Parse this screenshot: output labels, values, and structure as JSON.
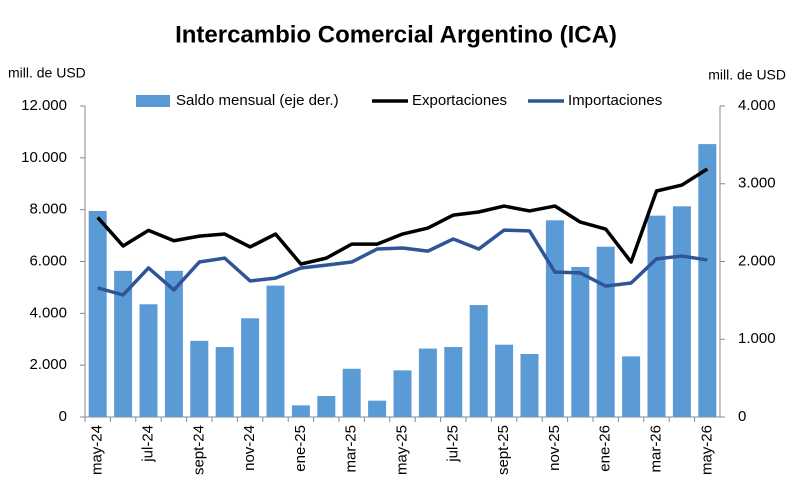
{
  "chart_data": {
    "type": "bar_line",
    "title": "Intercambio Comercial Argentino (ICA)",
    "y_label": "mill. de USD",
    "y2_label": "mill. de USD",
    "categories": [
      "may-24",
      null,
      "jul-24",
      null,
      "sept-24",
      null,
      "nov-24",
      null,
      "ene-25",
      null,
      "mar-25",
      null,
      "may-25",
      null,
      "jul-25",
      null,
      "sept-25",
      null,
      "nov-25",
      null,
      "ene-26",
      null,
      "mar-26",
      null,
      "may-26"
    ],
    "series": [
      {
        "name": "Saldo mensual (eje der.)",
        "type": "bar",
        "axis": "y2",
        "color": "#5b9bd5",
        "values": [
          2650,
          1880,
          1450,
          1880,
          980,
          900,
          1270,
          1690,
          150,
          270,
          620,
          210,
          600,
          880,
          900,
          1440,
          930,
          810,
          2530,
          1930,
          2190,
          780,
          2590,
          2710,
          3510
        ]
      },
      {
        "name": "Exportaciones",
        "type": "line",
        "color": "#000000",
        "values": [
          7700,
          6600,
          7200,
          6800,
          6980,
          7060,
          6560,
          7060,
          5900,
          6130,
          6670,
          6670,
          7060,
          7290,
          7790,
          7910,
          8140,
          7950,
          8140,
          7520,
          7250,
          5980,
          8720,
          8950,
          9570
        ]
      },
      {
        "name": "Importaciones",
        "type": "line",
        "color": "#2f5597",
        "values": [
          4980,
          4710,
          5750,
          4900,
          5980,
          6130,
          5250,
          5360,
          5750,
          5860,
          5980,
          6480,
          6520,
          6400,
          6870,
          6480,
          7210,
          7180,
          5590,
          5560,
          5050,
          5170,
          6100,
          6210,
          6060
        ]
      }
    ],
    "ylim": [
      0,
      12000
    ],
    "yticks": [
      0,
      {
        "value": 2000,
        "label": "2.000"
      },
      {
        "value": 4000,
        "label": "4.000"
      },
      {
        "value": 6000,
        "label": "6.000"
      },
      {
        "value": 8000,
        "label": "8.000"
      },
      {
        "value": 10000,
        "label": "10.000"
      },
      {
        "value": 12000,
        "label": "12.000"
      }
    ],
    "y2lim": [
      0,
      4000
    ],
    "y2ticks": [
      0,
      {
        "value": 1000,
        "label": "1.000"
      },
      {
        "value": 2000,
        "label": "2.000"
      },
      {
        "value": 3000,
        "label": "3.000"
      },
      {
        "value": 4000,
        "label": "4.000"
      }
    ],
    "grid": false
  }
}
